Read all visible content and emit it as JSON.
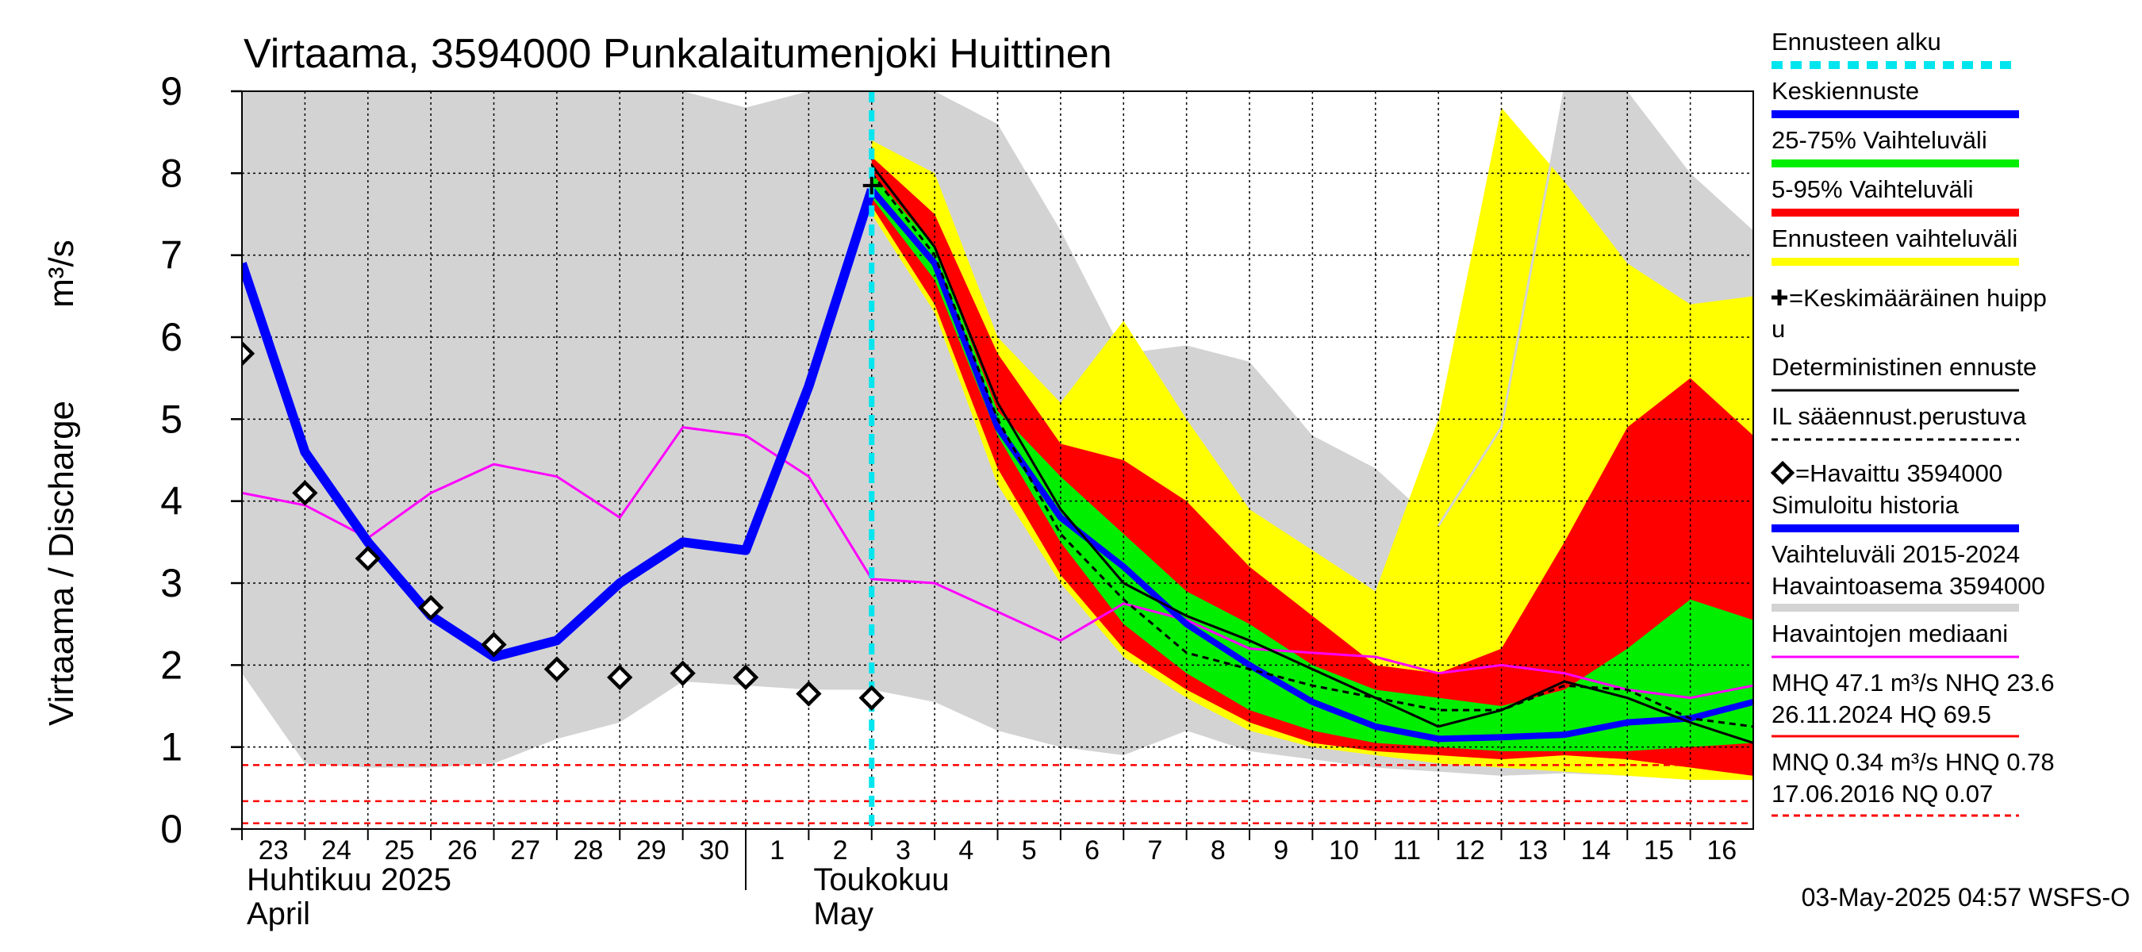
{
  "chart_data": {
    "type": "line",
    "title": "Virtaama, 3594000 Punkalaitumenjoki Huittinen",
    "ylabel": "Virtaama / Discharge",
    "yunit": "m³/s",
    "ylim": [
      0,
      9
    ],
    "yticks": [
      0,
      1,
      2,
      3,
      4,
      5,
      6,
      7,
      8,
      9
    ],
    "xlim": [
      0,
      24
    ],
    "forecast_start_x": 10,
    "x_ticks": [
      {
        "x": 0,
        "label": "23"
      },
      {
        "x": 1,
        "label": "24"
      },
      {
        "x": 2,
        "label": "25"
      },
      {
        "x": 3,
        "label": "26"
      },
      {
        "x": 4,
        "label": "27"
      },
      {
        "x": 5,
        "label": "28"
      },
      {
        "x": 6,
        "label": "29"
      },
      {
        "x": 7,
        "label": "30"
      },
      {
        "x": 8,
        "label": "1"
      },
      {
        "x": 9,
        "label": "2"
      },
      {
        "x": 10,
        "label": "3"
      },
      {
        "x": 11,
        "label": "4"
      },
      {
        "x": 12,
        "label": "5"
      },
      {
        "x": 13,
        "label": "6"
      },
      {
        "x": 14,
        "label": "7"
      },
      {
        "x": 15,
        "label": "8"
      },
      {
        "x": 16,
        "label": "9"
      },
      {
        "x": 17,
        "label": "10"
      },
      {
        "x": 18,
        "label": "11"
      },
      {
        "x": 19,
        "label": "12"
      },
      {
        "x": 20,
        "label": "13"
      },
      {
        "x": 21,
        "label": "14"
      },
      {
        "x": 22,
        "label": "15"
      },
      {
        "x": 23,
        "label": "16"
      }
    ],
    "month_labels": [
      {
        "x": 0,
        "fi": "Huhtikuu  2025",
        "en": "April"
      },
      {
        "x": 9,
        "fi": "Toukokuu",
        "en": "May"
      }
    ],
    "month_divider_x": 8,
    "reference_lines": [
      0.78,
      0.34,
      0.07
    ],
    "bands": [
      {
        "name": "Vaihteluväli 2015-2024 Havaintoasema 3594000",
        "color": "#d3d3d3",
        "x": [
          0,
          1,
          2,
          3,
          4,
          5,
          6,
          7,
          8,
          9,
          10,
          11,
          12,
          13,
          14,
          15,
          16,
          17,
          18,
          19,
          20,
          21,
          22,
          23,
          24
        ],
        "upper": [
          9,
          9,
          9,
          9,
          9,
          9,
          9,
          9,
          8.8,
          9,
          9,
          9,
          8.6,
          7.3,
          5.8,
          5.9,
          5.7,
          4.8,
          4.4,
          3.7,
          4.9,
          9,
          9,
          8,
          7.3
        ],
        "lower": [
          1.9,
          0.8,
          0.75,
          0.75,
          0.8,
          1.1,
          1.3,
          1.8,
          1.75,
          1.7,
          1.7,
          1.55,
          1.2,
          1.0,
          0.9,
          1.2,
          0.95,
          0.85,
          0.75,
          0.7,
          0.65,
          0.68,
          0.65,
          1.0,
          1.3
        ]
      },
      {
        "name": "Ennusteen vaihteluväli",
        "color": "#ffff00",
        "x": [
          10,
          11,
          12,
          13,
          14,
          15,
          16,
          17,
          18,
          19,
          20,
          21,
          22,
          23,
          24
        ],
        "upper": [
          8.4,
          8.0,
          6.0,
          5.2,
          6.2,
          5.0,
          3.9,
          3.4,
          2.9,
          5.0,
          8.8,
          7.9,
          6.9,
          6.4,
          6.5
        ],
        "lower": [
          7.5,
          6.3,
          4.2,
          3.0,
          2.1,
          1.6,
          1.2,
          1.0,
          0.9,
          0.8,
          0.75,
          0.7,
          0.65,
          0.6,
          0.6
        ]
      },
      {
        "name": "5-95% Vaihteluväli",
        "color": "#ff0000",
        "x": [
          10,
          11,
          12,
          13,
          14,
          15,
          16,
          17,
          18,
          19,
          20,
          21,
          22,
          23,
          24
        ],
        "upper": [
          8.2,
          7.5,
          5.8,
          4.7,
          4.5,
          4.0,
          3.2,
          2.6,
          2.0,
          1.9,
          2.2,
          3.5,
          4.9,
          5.5,
          4.8
        ],
        "lower": [
          7.6,
          6.4,
          4.4,
          3.1,
          2.2,
          1.7,
          1.3,
          1.05,
          0.95,
          0.9,
          0.85,
          0.9,
          0.85,
          0.75,
          0.65
        ]
      },
      {
        "name": "25-75% Vaihteluväli",
        "color": "#00ee00",
        "x": [
          10,
          11,
          12,
          13,
          14,
          15,
          16,
          17,
          18,
          19,
          20,
          21,
          22,
          23,
          24
        ],
        "upper": [
          8.0,
          7.1,
          5.1,
          4.3,
          3.6,
          2.9,
          2.5,
          2.0,
          1.7,
          1.6,
          1.5,
          1.7,
          2.2,
          2.8,
          2.55
        ],
        "lower": [
          7.7,
          6.7,
          4.8,
          3.5,
          2.5,
          1.9,
          1.45,
          1.2,
          1.05,
          1.0,
          0.95,
          0.95,
          0.95,
          1.0,
          1.05
        ]
      }
    ],
    "series": [
      {
        "name": "Simuloitu historia",
        "color": "#0000ff",
        "style": "thick",
        "x": [
          0,
          1,
          2,
          3,
          4,
          5,
          6,
          7,
          8,
          9,
          10
        ],
        "values": [
          6.9,
          4.6,
          3.5,
          2.6,
          2.1,
          2.3,
          3.0,
          3.5,
          3.4,
          5.4,
          7.8
        ]
      },
      {
        "name": "Keskiennuste",
        "color": "#0000ff",
        "style": "medium",
        "x": [
          10,
          11,
          12,
          13,
          14,
          15,
          16,
          17,
          18,
          19,
          20,
          21,
          22,
          23,
          24
        ],
        "values": [
          7.8,
          6.9,
          4.9,
          3.8,
          3.2,
          2.5,
          2.0,
          1.55,
          1.25,
          1.1,
          1.12,
          1.15,
          1.3,
          1.35,
          1.55
        ]
      },
      {
        "name": "Deterministinen ennuste",
        "color": "#000000",
        "style": "thin",
        "x": [
          10,
          11,
          12,
          13,
          14,
          15,
          16,
          17,
          18,
          19,
          20,
          21,
          22,
          23,
          24
        ],
        "values": [
          8.1,
          7.1,
          5.2,
          3.9,
          3.0,
          2.6,
          2.3,
          1.95,
          1.6,
          1.25,
          1.45,
          1.8,
          1.6,
          1.3,
          1.05
        ]
      },
      {
        "name": "IL sääennust.perustuva",
        "color": "#000000",
        "style": "dashed",
        "x": [
          10,
          11,
          12,
          13,
          14,
          15,
          16,
          17,
          18,
          19,
          20,
          21,
          22,
          23,
          24
        ],
        "values": [
          8.0,
          7.0,
          5.0,
          3.6,
          2.8,
          2.15,
          1.95,
          1.75,
          1.6,
          1.45,
          1.45,
          1.75,
          1.7,
          1.35,
          1.25
        ]
      },
      {
        "name": "Havaintojen mediaani",
        "color": "#ff00ff",
        "style": "thin",
        "x": [
          0,
          1,
          2,
          3,
          4,
          5,
          6,
          7,
          8,
          9,
          10,
          11,
          12,
          13,
          14,
          15,
          16,
          17,
          18,
          19,
          20,
          21,
          22,
          23,
          24
        ],
        "values": [
          4.1,
          3.95,
          3.55,
          4.1,
          4.45,
          4.3,
          3.8,
          4.9,
          4.8,
          4.3,
          3.05,
          3.0,
          2.65,
          2.3,
          2.75,
          2.55,
          2.2,
          2.15,
          2.1,
          1.9,
          2.0,
          1.9,
          1.7,
          1.6,
          1.75
        ]
      },
      {
        "name": "Max historia",
        "color": "#d3d3d3",
        "style": "thin",
        "x": [
          19,
          20,
          21
        ],
        "values": [
          3.7,
          4.9,
          9.0
        ]
      }
    ],
    "observed": {
      "name": "Havaittu 3594000",
      "x": [
        0,
        1,
        2,
        3,
        4,
        5,
        6,
        7,
        8,
        9,
        10
      ],
      "values": [
        5.8,
        4.1,
        3.3,
        2.7,
        2.25,
        1.95,
        1.85,
        1.9,
        1.85,
        1.65,
        1.6
      ]
    },
    "mean_peak": {
      "x": 10,
      "value": 7.85
    }
  },
  "legend": [
    {
      "label": "Ennusteen alku",
      "kind": "line",
      "color": "#00e5ee",
      "dash": true
    },
    {
      "label": "Keskiennuste",
      "kind": "line",
      "color": "#0000ff"
    },
    {
      "label": "25-75% Vaihteluväli",
      "kind": "line",
      "color": "#00ee00"
    },
    {
      "label": "5-95% Vaihteluväli",
      "kind": "line",
      "color": "#ff0000"
    },
    {
      "label": "Ennusteen vaihteluväli",
      "kind": "line",
      "color": "#ffff00"
    },
    {
      "label": "=Keskimääräinen huipp",
      "label2": "u",
      "kind": "marker-plus"
    },
    {
      "label": "Deterministinen ennuste",
      "kind": "thinline",
      "color": "#000000"
    },
    {
      "label": "IL sääennust.perustuva",
      "kind": "dashline",
      "color": "#000000"
    },
    {
      "label": "=Havaittu 3594000",
      "kind": "marker-diamond"
    },
    {
      "label": "Simuloitu historia",
      "kind": "line",
      "color": "#0000ff"
    },
    {
      "label": "Vaihteluväli 2015-2024",
      "label2": " Havaintoasema 3594000",
      "kind": "line",
      "color": "#d3d3d3"
    },
    {
      "label": "Havaintojen mediaani",
      "kind": "thinline",
      "color": "#ff00ff"
    },
    {
      "label": "MHQ 47.1 m³/s NHQ 23.6",
      "label2": "26.11.2024 HQ 69.5",
      "kind": "thinline",
      "color": "#ff0000"
    },
    {
      "label": "MNQ 0.34 m³/s HNQ 0.78",
      "label2": "17.06.2016 NQ 0.07",
      "kind": "dashline",
      "color": "#ff0000"
    }
  ],
  "footer": "03-May-2025 04:57 WSFS-O"
}
